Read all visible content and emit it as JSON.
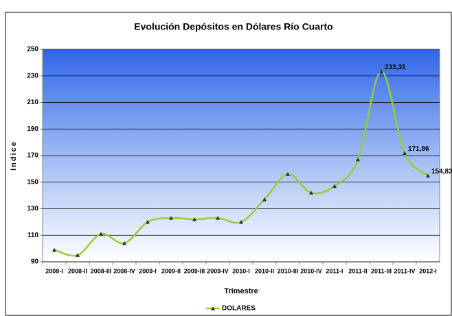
{
  "chart_data": {
    "type": "line",
    "title": "Evolución Depósitos en Dólares Río Cuarto",
    "x_label": "Trimestre",
    "y_label": "Indice",
    "categories": [
      "2008-I",
      "2008-II",
      "2008-III",
      "2008-IV",
      "2009-I",
      "2009-II",
      "2009-III",
      "2009-IV",
      "2010-I",
      "2010-II",
      "2010-III",
      "2010-IV",
      "2011-I",
      "2011-II",
      "2011-III",
      "2011-IV",
      "2012-I"
    ],
    "series": [
      {
        "name": "DOLARES",
        "color": "#99cc33",
        "values": [
          99,
          95,
          111,
          104,
          120,
          123,
          122,
          123,
          120,
          137,
          156,
          142,
          147,
          167,
          233.31,
          171.86,
          154.83
        ],
        "value_labels": [
          null,
          null,
          null,
          null,
          null,
          null,
          null,
          null,
          null,
          null,
          null,
          null,
          null,
          null,
          "233,31",
          "171,86",
          "154,83"
        ]
      }
    ],
    "ylim": [
      90,
      250
    ],
    "yticks": [
      90,
      110,
      130,
      150,
      170,
      190,
      210,
      230,
      250
    ],
    "grid": true,
    "legend": "bottom"
  }
}
